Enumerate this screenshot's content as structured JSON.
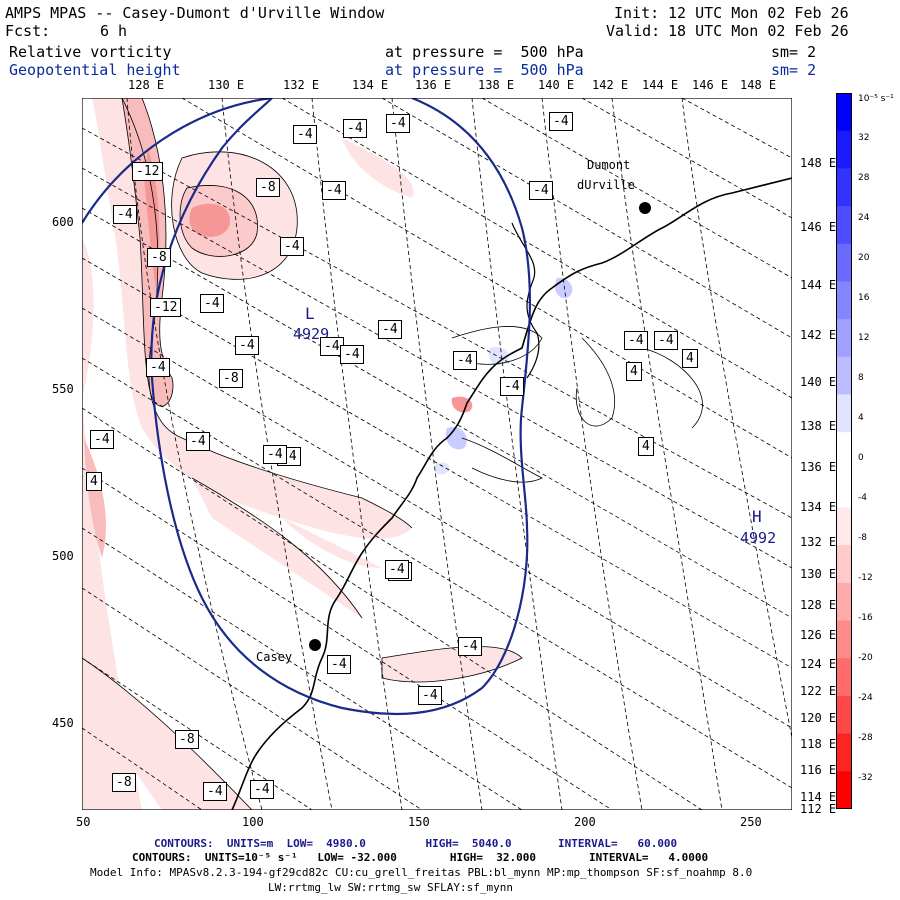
{
  "header": {
    "model_title": "AMPS MPAS -- Casey-Dumont d'Urville Window",
    "init_label": "Init:",
    "init_value": "12 UTC Mon 02 Feb 26",
    "fcst_label": "Fcst:",
    "fcst_value": "6 h",
    "valid_label": "Valid:",
    "valid_value": "18 UTC Mon 02 Feb 26",
    "field1_name": "Relative vorticity",
    "field1_level": "at pressure =  500 hPa",
    "field1_sm": "sm= 2",
    "field2_name": "Geopotential height",
    "field2_level": "at pressure =  500 hPa",
    "field2_sm": "sm= 2"
  },
  "axes": {
    "top_lon_labels": [
      "128 E",
      "130 E",
      "132 E",
      "134 E",
      "136 E",
      "138 E",
      "140 E",
      "142 E",
      "144 E",
      "146 E",
      "148 E"
    ],
    "right_lon_labels": [
      "148 E",
      "146 E",
      "144 E",
      "142 E",
      "140 E",
      "138 E",
      "136 E",
      "134 E",
      "132 E",
      "130 E",
      "128 E",
      "126 E",
      "124 E",
      "122 E",
      "120 E",
      "118 E",
      "116 E",
      "114 E",
      "112 E"
    ],
    "left_grid_labels": [
      "600",
      "550",
      "500",
      "450"
    ],
    "bottom_grid_labels": [
      "50",
      "100",
      "150",
      "200",
      "250"
    ]
  },
  "colorbar": {
    "unit_label": "10⁻⁵ s⁻¹",
    "labels": [
      "32",
      "28",
      "24",
      "20",
      "16",
      "12",
      "8",
      "4",
      "0",
      "-4",
      "-8",
      "-12",
      "-16",
      "-20",
      "-24",
      "-28",
      "-32"
    ],
    "colors": {
      "pos_strong": "#0000ff",
      "pos_weak": "#e0e4ff",
      "neg_weak": "#ffe8e8",
      "neg_strong": "#ff0000"
    }
  },
  "map": {
    "stations": [
      {
        "name_line1": "Dumont",
        "name_line2": "dUrville"
      },
      {
        "name_line1": "Casey",
        "name_line2": ""
      }
    ],
    "low_center": {
      "letter": "L",
      "value": "4929"
    },
    "high_center": {
      "letter": "H",
      "value": "4992"
    },
    "contour_labels": [
      "-4",
      "-4",
      "-4",
      "-4",
      "-12",
      "-8",
      "-4",
      "-4",
      "-4",
      "-4",
      "-8",
      "-12",
      "-4",
      "-4",
      "-4",
      "-4",
      "-8",
      "-4",
      "-4",
      "-4",
      "-4",
      "-4",
      "-4",
      "-4",
      "-4",
      "4",
      "4",
      "4",
      "4",
      "-4",
      "-8",
      "-4",
      "-4",
      "-4",
      "-8",
      "-4",
      "-4",
      "-4",
      "-4",
      "-4",
      "-4"
    ],
    "colors": {
      "coast": "#000000",
      "geopotential_contour": "#1a2a8a",
      "grid": "#000000",
      "station_dot": "#000000"
    }
  },
  "footer": {
    "line1_label": "CONTOURS:  UNITS=m  LOW=  4980.0         HIGH=  5040.0       INTERVAL=   60.000",
    "line2_label": "CONTOURS:  UNITS=10⁻⁵ s⁻¹   LOW= -32.000        HIGH=  32.000        INTERVAL=   4.0000",
    "line3": "Model Info: MPASv8.2.3-194-gf29cd82c CU:cu_grell_freitas PBL:bl_mynn MP:mp_thompson SF:sf_noahmp 8.0",
    "line4": "LW:rrtmg_lw SW:rrtmg_sw SFLAY:sf_mynn"
  }
}
